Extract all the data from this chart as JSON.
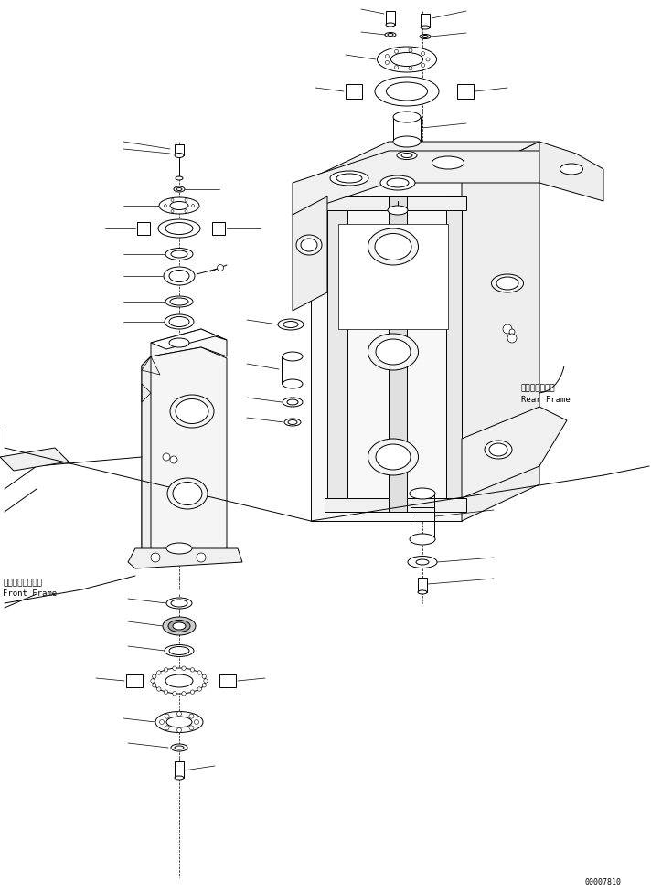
{
  "fig_width": 7.12,
  "fig_height": 9.76,
  "dpi": 100,
  "bg_color": "#ffffff",
  "line_color": "#000000",
  "labels": {
    "front_frame_jp": "フロントフレーム",
    "front_frame_en": "Front Frame",
    "rear_frame_jp": "リヤーフレーム",
    "rear_frame_en": "Rear Frame"
  },
  "part_number": "00007810"
}
